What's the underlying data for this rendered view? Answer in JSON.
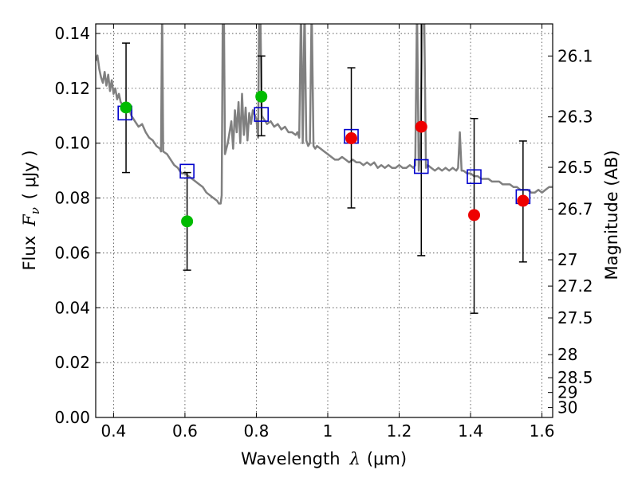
{
  "chart_data": {
    "type": "scatter",
    "xlabel_prefix": "Wavelength",
    "xlabel_symbol": "λ",
    "xlabel_units": "(μm)",
    "ylabel_prefix": "Flux",
    "ylabel_symbol": "F",
    "ylabel_subscript": "ν",
    "ylabel_units": "( μJy )",
    "y2label": "Magnitude (AB)",
    "xlim": [
      0.35,
      1.63
    ],
    "ylim": [
      0.0,
      0.1435
    ],
    "x_ticks": [
      0.4,
      0.6,
      0.8,
      1.0,
      1.2,
      1.4,
      1.6
    ],
    "x_tick_labels": [
      "0.4",
      "0.6",
      "0.8",
      "1",
      "1.2",
      "1.4",
      "1.6"
    ],
    "y_ticks": [
      0.0,
      0.02,
      0.04,
      0.06,
      0.08,
      0.1,
      0.12,
      0.14
    ],
    "y_tick_labels": [
      "0.00",
      "0.02",
      "0.04",
      "0.06",
      "0.08",
      "0.10",
      "0.12",
      "0.14"
    ],
    "y2_ticks": [
      {
        "label": "26.1",
        "flux": 0.1318
      },
      {
        "label": "26.3",
        "flux": 0.1096
      },
      {
        "label": "26.5",
        "flux": 0.0912
      },
      {
        "label": "26.7",
        "flux": 0.0759
      },
      {
        "label": "27",
        "flux": 0.0575
      },
      {
        "label": "27.2",
        "flux": 0.0479
      },
      {
        "label": "27.5",
        "flux": 0.0363
      },
      {
        "label": "28",
        "flux": 0.0229
      },
      {
        "label": "28.5",
        "flux": 0.0145
      },
      {
        "label": "29",
        "flux": 0.0091
      },
      {
        "label": "30",
        "flux": 0.0036
      }
    ],
    "grid": true,
    "colors": {
      "sed_model": "#808080",
      "optical_points": "#00bb00",
      "nir_points": "#ee0000",
      "model_squares": "#0000cc",
      "error_bars": "#000000"
    },
    "sed_model": [
      [
        0.35,
        0.13
      ],
      [
        0.355,
        0.132
      ],
      [
        0.36,
        0.127
      ],
      [
        0.365,
        0.124
      ],
      [
        0.37,
        0.122
      ],
      [
        0.375,
        0.126
      ],
      [
        0.38,
        0.121
      ],
      [
        0.385,
        0.125
      ],
      [
        0.39,
        0.119
      ],
      [
        0.395,
        0.123
      ],
      [
        0.4,
        0.118
      ],
      [
        0.405,
        0.12
      ],
      [
        0.41,
        0.116
      ],
      [
        0.415,
        0.118
      ],
      [
        0.42,
        0.115
      ],
      [
        0.43,
        0.113
      ],
      [
        0.44,
        0.114
      ],
      [
        0.45,
        0.11
      ],
      [
        0.46,
        0.108
      ],
      [
        0.47,
        0.106
      ],
      [
        0.48,
        0.107
      ],
      [
        0.49,
        0.104
      ],
      [
        0.5,
        0.102
      ],
      [
        0.51,
        0.101
      ],
      [
        0.52,
        0.099
      ],
      [
        0.53,
        0.098
      ],
      [
        0.533,
        0.097
      ],
      [
        0.536,
        0.15
      ],
      [
        0.539,
        0.097
      ],
      [
        0.55,
        0.096
      ],
      [
        0.56,
        0.094
      ],
      [
        0.57,
        0.092
      ],
      [
        0.58,
        0.091
      ],
      [
        0.59,
        0.089
      ],
      [
        0.6,
        0.089
      ],
      [
        0.61,
        0.088
      ],
      [
        0.62,
        0.087
      ],
      [
        0.63,
        0.086
      ],
      [
        0.64,
        0.085
      ],
      [
        0.65,
        0.084
      ],
      [
        0.66,
        0.082
      ],
      [
        0.67,
        0.081
      ],
      [
        0.68,
        0.08
      ],
      [
        0.69,
        0.079
      ],
      [
        0.695,
        0.078
      ],
      [
        0.7,
        0.078
      ],
      [
        0.703,
        0.081
      ],
      [
        0.706,
        0.15
      ],
      [
        0.709,
        0.15
      ],
      [
        0.712,
        0.096
      ],
      [
        0.72,
        0.1
      ],
      [
        0.73,
        0.108
      ],
      [
        0.735,
        0.098
      ],
      [
        0.74,
        0.112
      ],
      [
        0.745,
        0.104
      ],
      [
        0.75,
        0.115
      ],
      [
        0.755,
        0.1
      ],
      [
        0.76,
        0.118
      ],
      [
        0.765,
        0.103
      ],
      [
        0.77,
        0.113
      ],
      [
        0.775,
        0.101
      ],
      [
        0.78,
        0.111
      ],
      [
        0.785,
        0.107
      ],
      [
        0.79,
        0.112
      ],
      [
        0.8,
        0.109
      ],
      [
        0.805,
        0.102
      ],
      [
        0.808,
        0.15
      ],
      [
        0.811,
        0.15
      ],
      [
        0.815,
        0.11
      ],
      [
        0.82,
        0.109
      ],
      [
        0.83,
        0.107
      ],
      [
        0.84,
        0.108
      ],
      [
        0.85,
        0.106
      ],
      [
        0.86,
        0.107
      ],
      [
        0.87,
        0.105
      ],
      [
        0.88,
        0.106
      ],
      [
        0.89,
        0.104
      ],
      [
        0.9,
        0.104
      ],
      [
        0.91,
        0.103
      ],
      [
        0.915,
        0.104
      ],
      [
        0.92,
        0.102
      ],
      [
        0.925,
        0.15
      ],
      [
        0.93,
        0.1
      ],
      [
        0.935,
        0.15
      ],
      [
        0.94,
        0.101
      ],
      [
        0.945,
        0.099
      ],
      [
        0.95,
        0.1
      ],
      [
        0.955,
        0.15
      ],
      [
        0.96,
        0.099
      ],
      [
        0.965,
        0.098
      ],
      [
        0.97,
        0.099
      ],
      [
        0.98,
        0.098
      ],
      [
        0.99,
        0.097
      ],
      [
        1.0,
        0.096
      ],
      [
        1.01,
        0.095
      ],
      [
        1.02,
        0.094
      ],
      [
        1.03,
        0.094
      ],
      [
        1.04,
        0.095
      ],
      [
        1.05,
        0.094
      ],
      [
        1.06,
        0.093
      ],
      [
        1.07,
        0.094
      ],
      [
        1.08,
        0.093
      ],
      [
        1.09,
        0.093
      ],
      [
        1.1,
        0.092
      ],
      [
        1.11,
        0.093
      ],
      [
        1.12,
        0.092
      ],
      [
        1.13,
        0.093
      ],
      [
        1.14,
        0.091
      ],
      [
        1.15,
        0.092
      ],
      [
        1.16,
        0.091
      ],
      [
        1.17,
        0.092
      ],
      [
        1.18,
        0.091
      ],
      [
        1.19,
        0.091
      ],
      [
        1.2,
        0.092
      ],
      [
        1.21,
        0.091
      ],
      [
        1.22,
        0.091
      ],
      [
        1.23,
        0.092
      ],
      [
        1.24,
        0.091
      ],
      [
        1.245,
        0.092
      ],
      [
        1.25,
        0.15
      ],
      [
        1.255,
        0.09
      ],
      [
        1.26,
        0.1
      ],
      [
        1.265,
        0.15
      ],
      [
        1.27,
        0.15
      ],
      [
        1.275,
        0.091
      ],
      [
        1.28,
        0.092
      ],
      [
        1.29,
        0.091
      ],
      [
        1.3,
        0.09
      ],
      [
        1.31,
        0.091
      ],
      [
        1.32,
        0.09
      ],
      [
        1.33,
        0.091
      ],
      [
        1.34,
        0.09
      ],
      [
        1.35,
        0.091
      ],
      [
        1.36,
        0.09
      ],
      [
        1.365,
        0.091
      ],
      [
        1.37,
        0.104
      ],
      [
        1.375,
        0.09
      ],
      [
        1.38,
        0.09
      ],
      [
        1.39,
        0.089
      ],
      [
        1.4,
        0.089
      ],
      [
        1.41,
        0.088
      ],
      [
        1.42,
        0.088
      ],
      [
        1.43,
        0.087
      ],
      [
        1.44,
        0.087
      ],
      [
        1.45,
        0.087
      ],
      [
        1.46,
        0.086
      ],
      [
        1.47,
        0.086
      ],
      [
        1.48,
        0.086
      ],
      [
        1.49,
        0.085
      ],
      [
        1.5,
        0.085
      ],
      [
        1.51,
        0.085
      ],
      [
        1.52,
        0.084
      ],
      [
        1.53,
        0.084
      ],
      [
        1.54,
        0.083
      ],
      [
        1.55,
        0.083
      ],
      [
        1.56,
        0.083
      ],
      [
        1.57,
        0.082
      ],
      [
        1.58,
        0.082
      ],
      [
        1.59,
        0.083
      ],
      [
        1.6,
        0.082
      ],
      [
        1.61,
        0.083
      ],
      [
        1.62,
        0.084
      ],
      [
        1.63,
        0.084
      ]
    ],
    "photometry": [
      {
        "x": 0.435,
        "y": 0.113,
        "yerr_low": 0.0893,
        "yerr_high": 0.1365,
        "band": "optical"
      },
      {
        "x": 0.606,
        "y": 0.0715,
        "yerr_low": 0.0537,
        "yerr_high": 0.0893,
        "band": "optical"
      },
      {
        "x": 0.814,
        "y": 0.117,
        "yerr_low": 0.1027,
        "yerr_high": 0.1318,
        "band": "optical"
      },
      {
        "x": 1.066,
        "y": 0.1018,
        "yerr_low": 0.0764,
        "yerr_high": 0.1275,
        "band": "nir"
      },
      {
        "x": 1.262,
        "y": 0.106,
        "yerr_low": 0.059,
        "yerr_high": 0.145,
        "band": "nir"
      },
      {
        "x": 1.41,
        "y": 0.0738,
        "yerr_low": 0.038,
        "yerr_high": 0.109,
        "band": "nir"
      },
      {
        "x": 1.547,
        "y": 0.079,
        "yerr_low": 0.0567,
        "yerr_high": 0.1008,
        "band": "nir"
      }
    ],
    "model_fluxes": [
      {
        "x": 0.432,
        "y": 0.111
      },
      {
        "x": 0.606,
        "y": 0.0898
      },
      {
        "x": 0.814,
        "y": 0.1105
      },
      {
        "x": 1.066,
        "y": 0.1025
      },
      {
        "x": 1.262,
        "y": 0.0915
      },
      {
        "x": 1.41,
        "y": 0.0878
      },
      {
        "x": 1.547,
        "y": 0.0805
      }
    ]
  }
}
